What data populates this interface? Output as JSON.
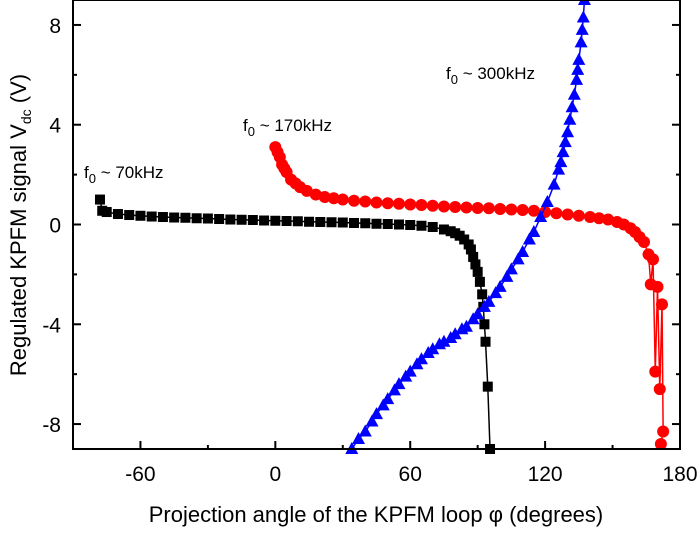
{
  "chart_data": {
    "type": "scatter",
    "title": "",
    "xlabel": "Projection angle of the KPFM loop φ (degrees)",
    "ylabel": {
      "main": "Regulated KPFM signal V",
      "sub": "dc",
      "unit": " (V)"
    },
    "xlim": [
      -90,
      180
    ],
    "ylim": [
      -9,
      9
    ],
    "xticks": [
      -60,
      0,
      60,
      120,
      180
    ],
    "yticks": [
      -8,
      -4,
      0,
      4,
      8
    ],
    "xtick_labels": [
      "-60",
      "0",
      "60",
      "120",
      "180"
    ],
    "ytick_labels": [
      "-8",
      "-4",
      "0",
      "4",
      "8"
    ],
    "grid": false,
    "series": [
      {
        "name": "f0 ~ 70kHz",
        "label": {
          "f": "f",
          "sub": "0",
          "rest": " ~ 70kHz"
        },
        "color": "#000000",
        "marker": "square",
        "points": [
          [
            -78,
            1.0
          ],
          [
            -77,
            0.55
          ],
          [
            -75,
            0.5
          ],
          [
            -70,
            0.42
          ],
          [
            -65,
            0.38
          ],
          [
            -60,
            0.35
          ],
          [
            -55,
            0.32
          ],
          [
            -50,
            0.3
          ],
          [
            -45,
            0.28
          ],
          [
            -40,
            0.27
          ],
          [
            -35,
            0.25
          ],
          [
            -30,
            0.24
          ],
          [
            -25,
            0.22
          ],
          [
            -20,
            0.2
          ],
          [
            -15,
            0.19
          ],
          [
            -10,
            0.18
          ],
          [
            -5,
            0.16
          ],
          [
            0,
            0.15
          ],
          [
            5,
            0.14
          ],
          [
            10,
            0.13
          ],
          [
            15,
            0.11
          ],
          [
            20,
            0.1
          ],
          [
            25,
            0.09
          ],
          [
            30,
            0.08
          ],
          [
            35,
            0.06
          ],
          [
            40,
            0.05
          ],
          [
            45,
            0.03
          ],
          [
            50,
            0.02
          ],
          [
            55,
            0.0
          ],
          [
            60,
            -0.02
          ],
          [
            65,
            -0.05
          ],
          [
            70,
            -0.1
          ],
          [
            75,
            -0.2
          ],
          [
            78,
            -0.27
          ],
          [
            80,
            -0.35
          ],
          [
            82,
            -0.45
          ],
          [
            84,
            -0.6
          ],
          [
            86,
            -0.8
          ],
          [
            87,
            -1.0
          ],
          [
            88,
            -1.3
          ],
          [
            89,
            -1.6
          ],
          [
            90,
            -1.9
          ],
          [
            91,
            -2.3
          ],
          [
            92,
            -2.8
          ],
          [
            92.5,
            -3.3
          ],
          [
            93,
            -4.0
          ],
          [
            93.5,
            -4.7
          ],
          [
            94.5,
            -6.5
          ],
          [
            95.5,
            -9.0
          ]
        ]
      },
      {
        "name": "f0 ~ 170kHz",
        "label": {
          "f": "f",
          "sub": "0",
          "rest": " ~ 170kHz"
        },
        "color": "#ff0000",
        "marker": "circle",
        "points": [
          [
            0,
            3.1
          ],
          [
            1,
            2.9
          ],
          [
            2,
            2.7
          ],
          [
            3,
            2.4
          ],
          [
            4,
            2.25
          ],
          [
            5,
            2.1
          ],
          [
            7,
            1.8
          ],
          [
            9,
            1.65
          ],
          [
            11,
            1.5
          ],
          [
            14,
            1.35
          ],
          [
            18,
            1.2
          ],
          [
            22,
            1.1
          ],
          [
            26,
            1.05
          ],
          [
            30,
            1.0
          ],
          [
            35,
            0.95
          ],
          [
            40,
            0.92
          ],
          [
            45,
            0.88
          ],
          [
            50,
            0.85
          ],
          [
            55,
            0.83
          ],
          [
            60,
            0.8
          ],
          [
            65,
            0.78
          ],
          [
            70,
            0.75
          ],
          [
            75,
            0.72
          ],
          [
            80,
            0.7
          ],
          [
            85,
            0.68
          ],
          [
            90,
            0.66
          ],
          [
            95,
            0.65
          ],
          [
            100,
            0.62
          ],
          [
            105,
            0.6
          ],
          [
            110,
            0.58
          ],
          [
            115,
            0.55
          ],
          [
            120,
            0.5
          ],
          [
            125,
            0.45
          ],
          [
            130,
            0.4
          ],
          [
            135,
            0.35
          ],
          [
            140,
            0.3
          ],
          [
            144,
            0.25
          ],
          [
            148,
            0.2
          ],
          [
            152,
            0.1
          ],
          [
            155,
            0.0
          ],
          [
            158,
            -0.15
          ],
          [
            160,
            -0.3
          ],
          [
            162,
            -0.5
          ],
          [
            164,
            -0.7
          ],
          [
            166,
            -1.2
          ],
          [
            167,
            -2.4
          ],
          [
            168,
            -1.4
          ],
          [
            169,
            -5.9
          ],
          [
            170,
            -2.5
          ],
          [
            171,
            -6.6
          ],
          [
            172,
            -3.2
          ],
          [
            172.5,
            -8.3
          ],
          [
            171.5,
            -8.8
          ]
        ]
      },
      {
        "name": "f0 ~ 300kHz",
        "label": {
          "f": "f",
          "sub": "0",
          "rest": " ~ 300kHz"
        },
        "color": "#0000ff",
        "marker": "triangle",
        "points": [
          [
            34,
            -9.0
          ],
          [
            37,
            -8.6
          ],
          [
            40,
            -8.3
          ],
          [
            43,
            -7.9
          ],
          [
            45,
            -7.6
          ],
          [
            48,
            -7.25
          ],
          [
            50,
            -7.0
          ],
          [
            53,
            -6.65
          ],
          [
            55,
            -6.4
          ],
          [
            58,
            -6.1
          ],
          [
            60,
            -5.9
          ],
          [
            63,
            -5.6
          ],
          [
            65,
            -5.4
          ],
          [
            68,
            -5.15
          ],
          [
            70,
            -5.0
          ],
          [
            73,
            -4.8
          ],
          [
            75,
            -4.7
          ],
          [
            78,
            -4.55
          ],
          [
            80,
            -4.4
          ],
          [
            83,
            -4.2
          ],
          [
            85,
            -4.1
          ],
          [
            88,
            -3.8
          ],
          [
            90,
            -3.6
          ],
          [
            93,
            -3.3
          ],
          [
            95,
            -3.1
          ],
          [
            98,
            -2.75
          ],
          [
            100,
            -2.5
          ],
          [
            103,
            -2.1
          ],
          [
            105,
            -1.8
          ],
          [
            108,
            -1.4
          ],
          [
            110,
            -1.1
          ],
          [
            113,
            -0.6
          ],
          [
            115,
            -0.3
          ],
          [
            118,
            0.3
          ],
          [
            121,
            0.9
          ],
          [
            124,
            1.6
          ],
          [
            126,
            2.2
          ],
          [
            127,
            2.5
          ],
          [
            128,
            2.9
          ],
          [
            129,
            3.3
          ],
          [
            130,
            3.7
          ],
          [
            131,
            4.2
          ],
          [
            132,
            4.7
          ],
          [
            133,
            5.2
          ],
          [
            134,
            5.8
          ],
          [
            134.5,
            6.2
          ],
          [
            135,
            6.6
          ],
          [
            136,
            7.3
          ],
          [
            136.5,
            7.8
          ],
          [
            137,
            8.3
          ],
          [
            137.5,
            9.0
          ]
        ]
      }
    ]
  }
}
